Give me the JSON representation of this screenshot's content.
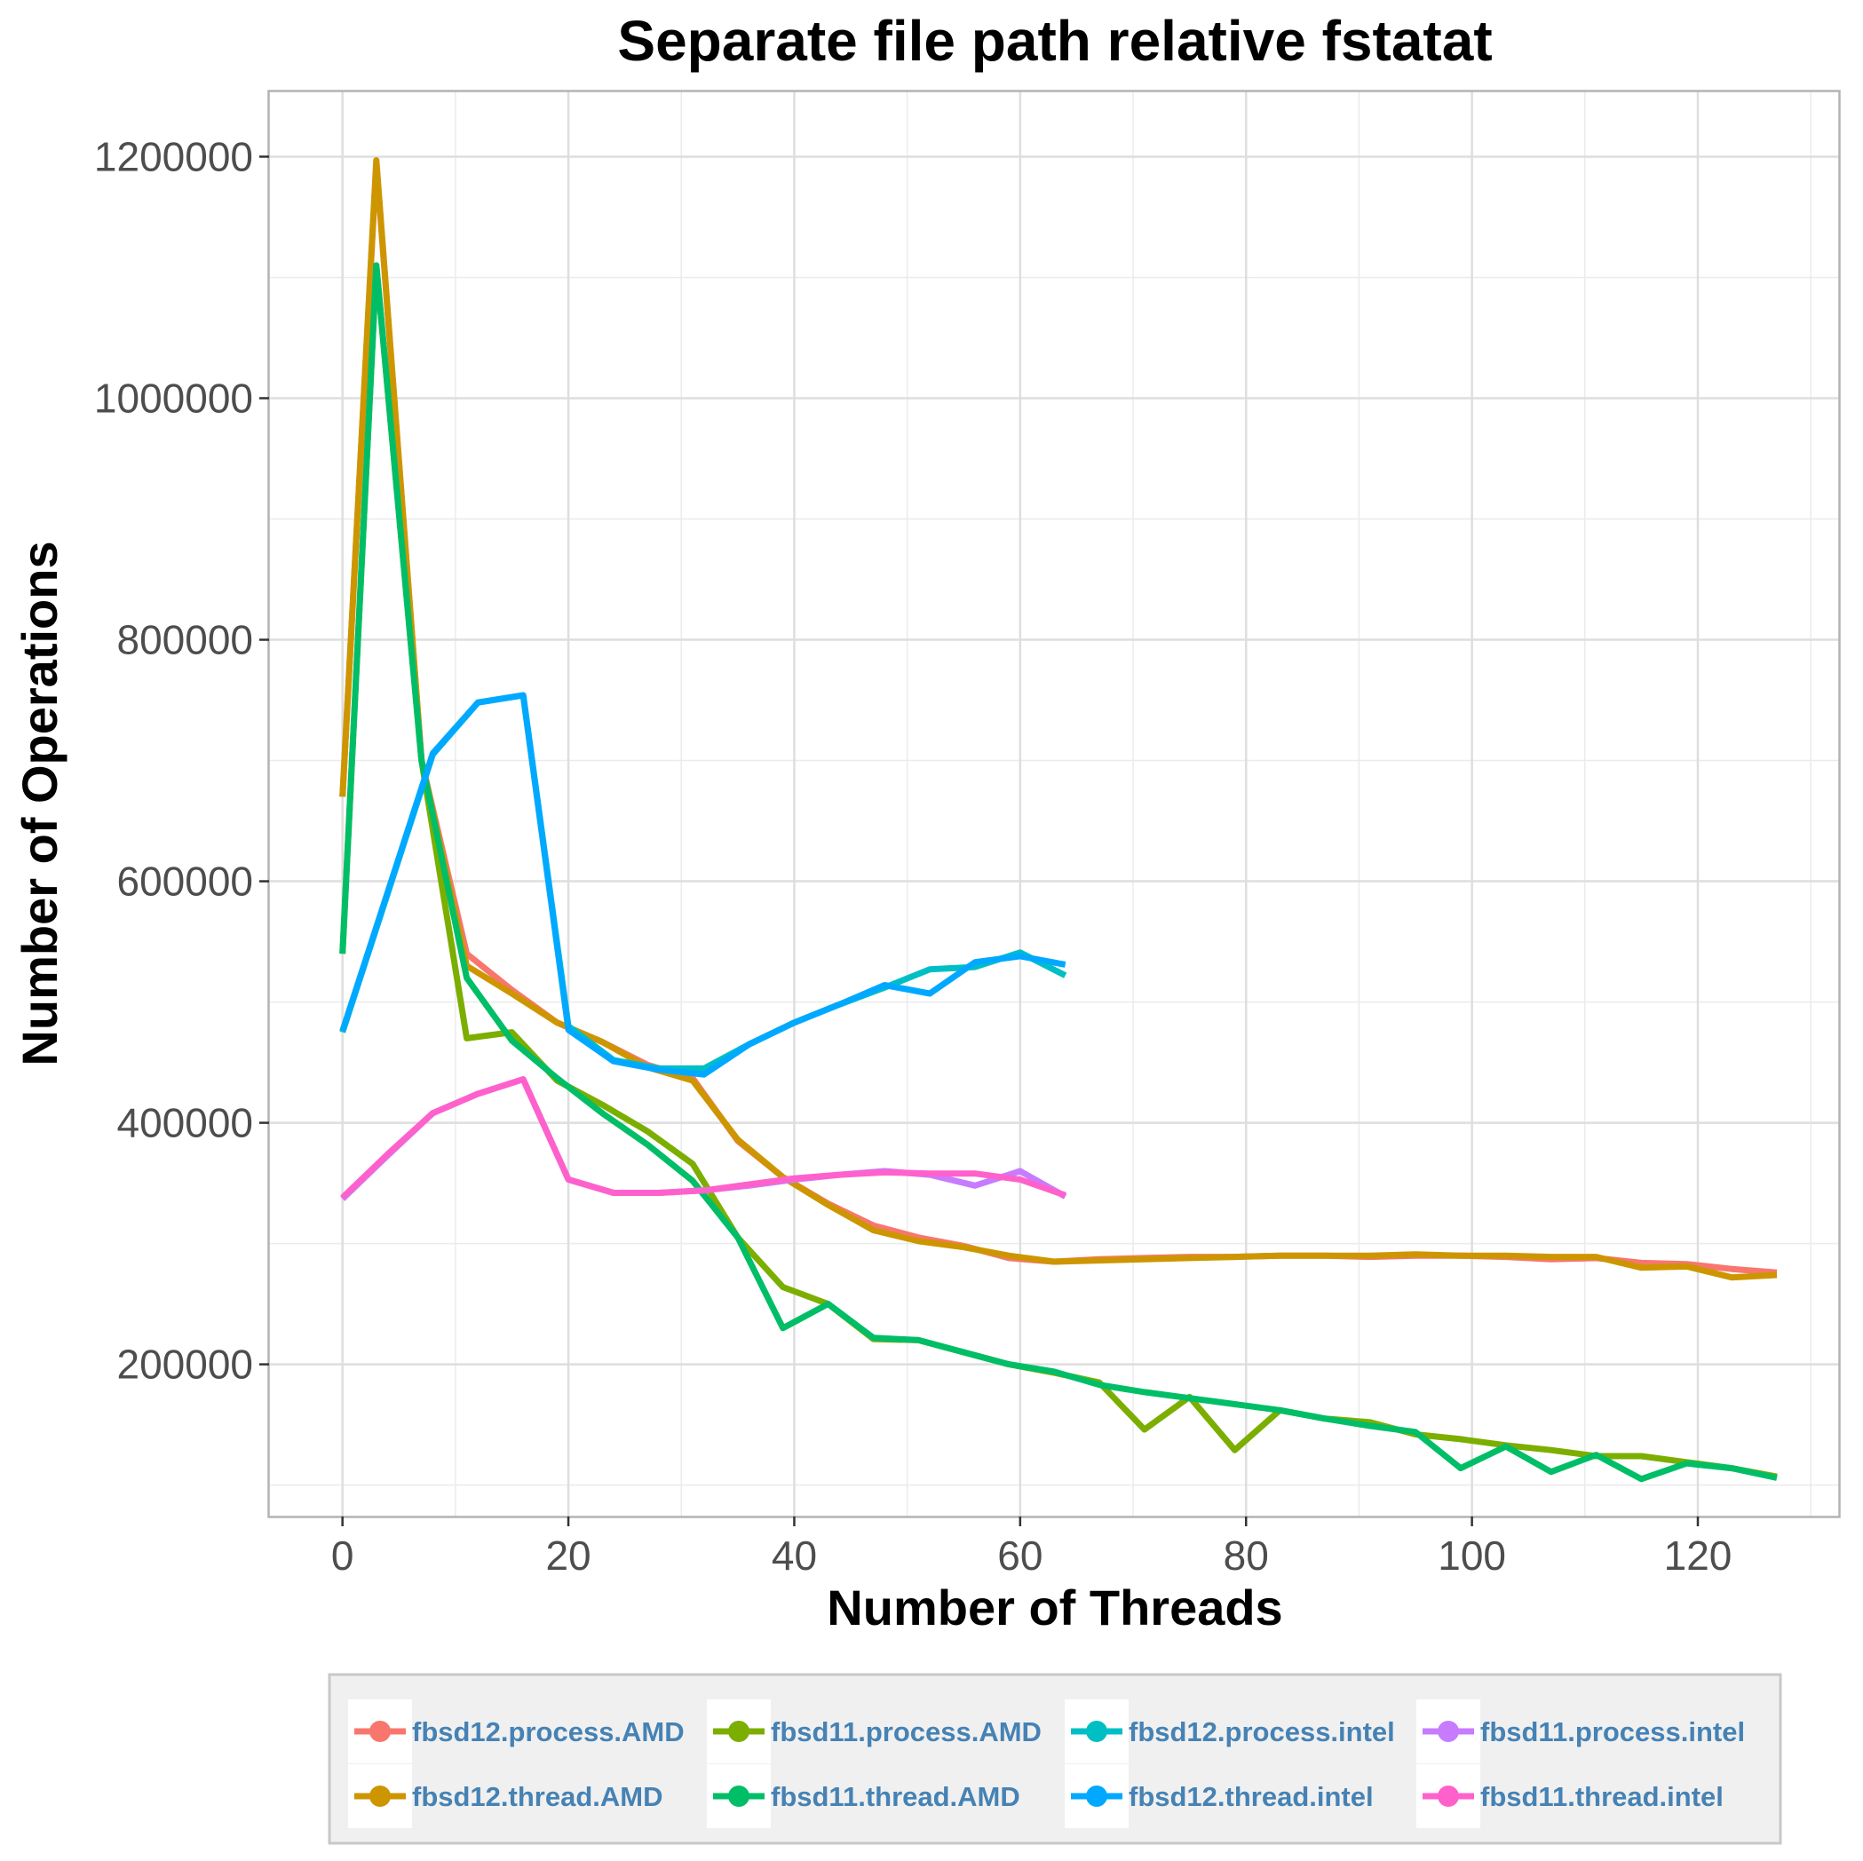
{
  "chart_data": {
    "type": "line",
    "title": "Separate file path relative fstatat",
    "xlabel": "Number of Threads",
    "ylabel": "Number of Operations",
    "xlim": [
      -6.5,
      132.5
    ],
    "ylim": [
      74000,
      1254000
    ],
    "xticks": [
      0,
      20,
      40,
      60,
      80,
      100,
      120
    ],
    "xtick_labels": [
      "0",
      "20",
      "40",
      "60",
      "80",
      "100",
      "120"
    ],
    "yticks": [
      200000,
      400000,
      600000,
      800000,
      1000000,
      1200000
    ],
    "ytick_labels": [
      "200000",
      "400000",
      "600000",
      "800000",
      "1000000",
      "1200000"
    ],
    "grid": true,
    "legend_position": "bottom",
    "series": [
      {
        "name": "fbsd12.process.AMD",
        "color": "#F8766D",
        "x": [
          0,
          3,
          7,
          11,
          15,
          19,
          23,
          27,
          31,
          35,
          39,
          43,
          47,
          51,
          55,
          59,
          63,
          67,
          71,
          75,
          79,
          83,
          87,
          91,
          95,
          99,
          103,
          107,
          111,
          115,
          119,
          123,
          127
        ],
        "y": [
          670000,
          1195000,
          700000,
          540000,
          510000,
          483000,
          467000,
          448000,
          437000,
          385000,
          355000,
          333000,
          315000,
          305000,
          298000,
          288000,
          285000,
          287000,
          288000,
          289000,
          289000,
          290000,
          290000,
          289000,
          290000,
          290000,
          289000,
          287000,
          288000,
          284000,
          283000,
          279000,
          276000
        ]
      },
      {
        "name": "fbsd12.thread.AMD",
        "color": "#CD9600",
        "x": [
          0,
          3,
          7,
          11,
          15,
          19,
          23,
          27,
          31,
          35,
          39,
          43,
          47,
          51,
          55,
          59,
          63,
          67,
          71,
          75,
          79,
          83,
          87,
          91,
          95,
          99,
          103,
          107,
          111,
          115,
          119,
          123,
          127
        ],
        "y": [
          670000,
          1197000,
          700000,
          530000,
          507000,
          483000,
          467000,
          446000,
          435000,
          386000,
          355000,
          332000,
          311000,
          302000,
          297000,
          290000,
          285000,
          286000,
          287000,
          288000,
          289000,
          290000,
          290000,
          290000,
          291000,
          290000,
          290000,
          289000,
          289000,
          280000,
          281000,
          272000,
          274000
        ]
      },
      {
        "name": "fbsd11.process.AMD",
        "color": "#7CAE00",
        "x": [
          0,
          3,
          7,
          11,
          15,
          19,
          23,
          27,
          31,
          35,
          39,
          43,
          47,
          51,
          55,
          59,
          63,
          67,
          71,
          75,
          79,
          83,
          87,
          91,
          95,
          99,
          103,
          107,
          111,
          115,
          119,
          123,
          127
        ],
        "y": [
          540000,
          1110000,
          700000,
          470000,
          475000,
          435000,
          415000,
          393000,
          366000,
          305000,
          264000,
          250000,
          221000,
          220000,
          210000,
          200000,
          193000,
          185000,
          146000,
          173000,
          129000,
          162000,
          155000,
          152000,
          142000,
          138000,
          133000,
          129000,
          124000,
          124000,
          119000,
          114000,
          107000
        ]
      },
      {
        "name": "fbsd11.thread.AMD",
        "color": "#00BE67",
        "x": [
          0,
          3,
          7,
          11,
          15,
          19,
          23,
          27,
          31,
          35,
          39,
          43,
          47,
          51,
          55,
          59,
          63,
          67,
          71,
          75,
          79,
          83,
          87,
          91,
          95,
          99,
          103,
          107,
          111,
          115,
          119,
          123,
          127
        ],
        "y": [
          540000,
          1110000,
          700000,
          520000,
          468000,
          437000,
          408000,
          382000,
          352000,
          305000,
          230000,
          250000,
          222000,
          220000,
          210000,
          200000,
          194000,
          183000,
          177000,
          172000,
          167000,
          162000,
          155000,
          149000,
          144000,
          114000,
          132000,
          111000,
          125000,
          105000,
          118000,
          114000,
          106000
        ]
      },
      {
        "name": "fbsd12.process.intel",
        "color": "#00BFC4",
        "x": [
          0,
          4,
          8,
          12,
          16,
          20,
          24,
          28,
          32,
          36,
          40,
          44,
          48,
          52,
          56,
          60,
          64
        ],
        "y": [
          475000,
          590000,
          705000,
          748000,
          754000,
          480000,
          452000,
          445000,
          445000,
          465000,
          483000,
          498000,
          512000,
          527000,
          529000,
          541000,
          522000
        ]
      },
      {
        "name": "fbsd11.process.intel",
        "color": "#C77CFF",
        "x": [
          0,
          4,
          8,
          12,
          16,
          20,
          24,
          28,
          32,
          36,
          40,
          44,
          48,
          52,
          56,
          60,
          64
        ],
        "y": [
          337000,
          373000,
          408000,
          424000,
          436000,
          353000,
          342000,
          342000,
          344000,
          348000,
          353000,
          357000,
          360000,
          357000,
          348000,
          360000,
          339000
        ]
      },
      {
        "name": "fbsd12.thread.intel",
        "color": "#00A9FF",
        "x": [
          0,
          4,
          8,
          12,
          16,
          20,
          24,
          28,
          32,
          36,
          40,
          44,
          48,
          52,
          56,
          60,
          64
        ],
        "y": [
          476000,
          591000,
          706000,
          748000,
          754000,
          477000,
          451000,
          444000,
          440000,
          465000,
          483000,
          498000,
          514000,
          507000,
          533000,
          538000,
          531000
        ]
      },
      {
        "name": "fbsd11.thread.intel",
        "color": "#FF61CC",
        "x": [
          0,
          4,
          8,
          12,
          16,
          20,
          24,
          28,
          32,
          36,
          40,
          44,
          48,
          52,
          56,
          60,
          64
        ],
        "y": [
          338000,
          374000,
          408000,
          424000,
          436000,
          353000,
          342000,
          342000,
          344000,
          349000,
          354000,
          357000,
          359000,
          358000,
          358000,
          353000,
          340000
        ]
      }
    ]
  }
}
